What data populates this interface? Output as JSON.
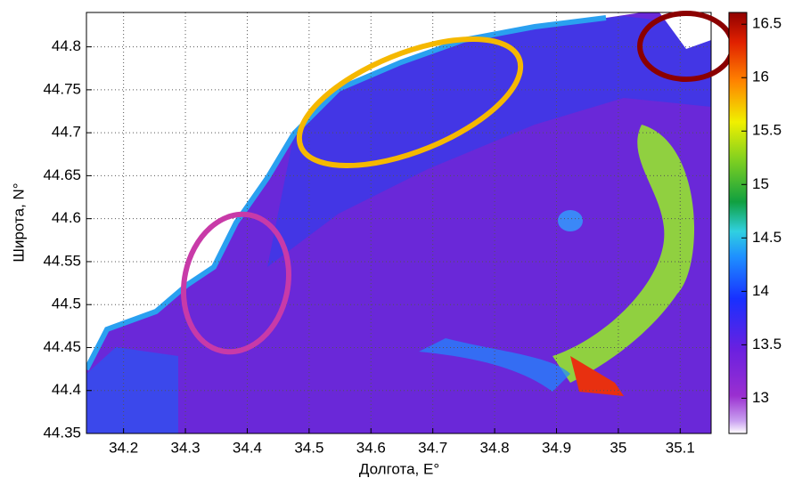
{
  "chart_data": {
    "type": "map",
    "x_label": "Долгота, E°",
    "y_label": "Широта, N°",
    "xlim": [
      34.14,
      35.15
    ],
    "xticks": [
      34.2,
      34.3,
      34.4,
      34.5,
      34.6,
      34.7,
      34.8,
      34.9,
      35,
      35.1
    ],
    "ylim": [
      44.35,
      44.84
    ],
    "yticks": [
      44.35,
      44.4,
      44.45,
      44.5,
      44.55,
      44.6,
      44.65,
      44.7,
      44.75,
      44.8
    ],
    "clim": [
      12.67,
      16.61
    ],
    "cticks": [
      13,
      13.5,
      14,
      14.5,
      15,
      15.5,
      16,
      16.5
    ],
    "grid": true
  }
}
